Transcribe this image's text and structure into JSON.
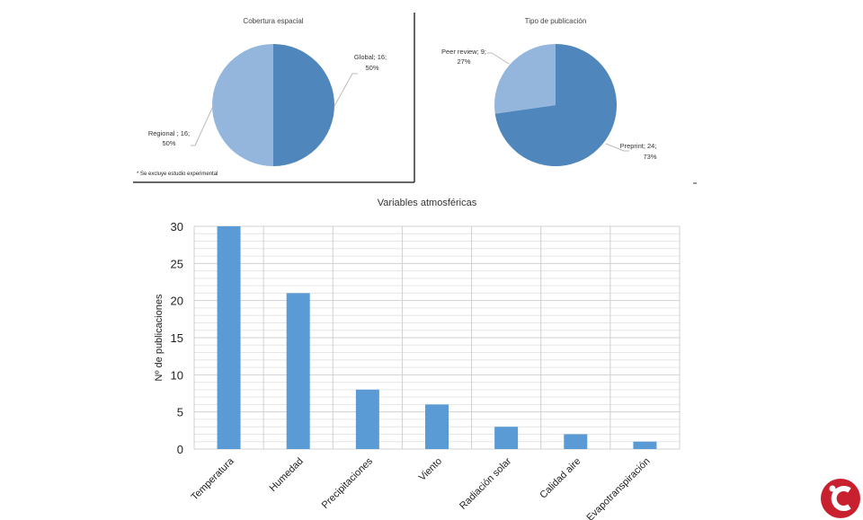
{
  "chart_data": [
    {
      "type": "pie",
      "title": "Cobertura espacial",
      "note": "* Se excluye estudio experimental",
      "slices": [
        {
          "label": "Global",
          "value": 16,
          "pct": "50%",
          "color": "#4f86bb"
        },
        {
          "label": "Regional",
          "value": 16,
          "pct": "50%",
          "color": "#94b5dc"
        }
      ],
      "labels": [
        "Global; 16;",
        "50%",
        "Regional ; 16;",
        "50%"
      ]
    },
    {
      "type": "pie",
      "title": "Tipo de publicación",
      "slices": [
        {
          "label": "Preprint",
          "value": 24,
          "pct": "73%",
          "color": "#4f86bb"
        },
        {
          "label": "Peer review",
          "value": 9,
          "pct": "27%",
          "color": "#94b5dc"
        }
      ],
      "labels": [
        "Preprint; 24;",
        "73%",
        "Peer review; 9;",
        "27%"
      ]
    },
    {
      "type": "bar",
      "title": "Variables atmosféricas",
      "xlabel": "",
      "ylabel": "Nº de publicaciones",
      "ylim": [
        0,
        30
      ],
      "yticks": [
        "0",
        "5",
        "10",
        "15",
        "20",
        "25",
        "30"
      ],
      "categories": [
        "Temperatura",
        "Humedad",
        "Precipitaciones",
        "Viento",
        "Radiación solar",
        "Calidad aire",
        "Evapotranspiración"
      ],
      "values": [
        30,
        21,
        8,
        6,
        3,
        2,
        1
      ],
      "color": "#5b9bd5",
      "grid": true
    }
  ],
  "logo": {
    "text": "iC",
    "color": "#c8202f"
  }
}
